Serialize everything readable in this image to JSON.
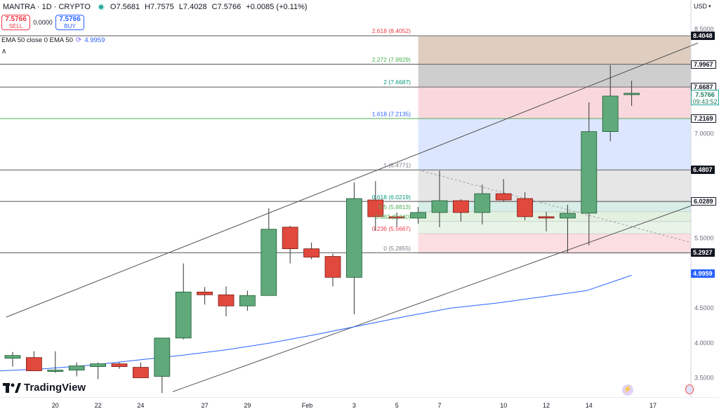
{
  "header": {
    "symbol": "MANTRA · 1D · CRYPTO",
    "open": "O7.5681",
    "high": "H7.7575",
    "low": "L7.4028",
    "close": "C7.5766",
    "change": "+0.0085 (+0.11%)",
    "status_color": "#26a69a"
  },
  "trade": {
    "sell_price": "7.5766",
    "sell_label": "SELL",
    "spread": "0.0000",
    "buy_price": "7.5766",
    "buy_label": "BUY"
  },
  "indicator": {
    "label": "EMA 50 close 0 EMA 50",
    "value": "4.9959",
    "icon": "indicator-settings-icon"
  },
  "axis": {
    "currency": "USD",
    "price_ticks": [
      "8.5000",
      "7.0000",
      "6.5000",
      "5.5000",
      "4.5000",
      "4.0000",
      "3.5000"
    ],
    "date_ticks": [
      "20",
      "22",
      "24",
      "27",
      "29",
      "Feb",
      "3",
      "5",
      "7",
      "10",
      "12",
      "14",
      "17"
    ],
    "badges": [
      {
        "text": "8.4048",
        "style": "dark"
      },
      {
        "text": "7.9967",
        "style": "light"
      },
      {
        "text": "7.6687",
        "style": "light"
      },
      {
        "text": "7.2169",
        "style": "light"
      },
      {
        "text": "6.4807",
        "style": "dark"
      },
      {
        "text": "6.0289",
        "style": "light"
      },
      {
        "text": "5.2927",
        "style": "dark"
      },
      {
        "text": "4.9959",
        "style": "blue"
      }
    ],
    "current_price": "7.5766",
    "countdown": "09:43:52"
  },
  "fib": {
    "labels": [
      {
        "text": "2.618 (8.4052)",
        "color": "#f23645"
      },
      {
        "text": "2.272 (7.9929)",
        "color": "#4caf50"
      },
      {
        "text": "2 (7.6687)",
        "color": "#089981"
      },
      {
        "text": "1.618 (7.2135)",
        "color": "#2962ff"
      },
      {
        "text": "1 (6.4771)",
        "color": "#787b86"
      },
      {
        "text": "0.618 (6.0219)",
        "color": "#089981"
      },
      {
        "text": "0.5 (5.8813)",
        "color": "#4caf50"
      },
      {
        "text": "0.382 (5.740)",
        "color": "#4caf50"
      },
      {
        "text": "0.236 (5.5667)",
        "color": "#f23645"
      },
      {
        "text": "0 (5.2855)",
        "color": "#787b86"
      }
    ]
  },
  "chart_data": {
    "type": "candlestick",
    "title": "MANTRA · 1D · CRYPTO",
    "ylim": [
      3.3,
      8.72
    ],
    "y_ticks": [
      8.5,
      7.0,
      6.5,
      5.5,
      4.5,
      4.0,
      3.5
    ],
    "x_labels": [
      "20",
      "22",
      "24",
      "27",
      "29",
      "Feb",
      "3",
      "5",
      "7",
      "10",
      "12",
      "14",
      "17"
    ],
    "candles": [
      {
        "o": 3.78,
        "h": 3.87,
        "l": 3.66,
        "c": 3.82
      },
      {
        "o": 3.79,
        "h": 3.88,
        "l": 3.6,
        "c": 3.6
      },
      {
        "o": 3.6,
        "h": 3.88,
        "l": 3.57,
        "c": 3.61
      },
      {
        "o": 3.61,
        "h": 3.72,
        "l": 3.52,
        "c": 3.67
      },
      {
        "o": 3.66,
        "h": 3.72,
        "l": 3.48,
        "c": 3.7
      },
      {
        "o": 3.7,
        "h": 3.72,
        "l": 3.63,
        "c": 3.66
      },
      {
        "o": 3.65,
        "h": 3.72,
        "l": 3.5,
        "c": 3.5
      },
      {
        "o": 3.52,
        "h": 4.07,
        "l": 3.28,
        "c": 4.07
      },
      {
        "o": 4.07,
        "h": 5.14,
        "l": 4.05,
        "c": 4.73
      },
      {
        "o": 4.73,
        "h": 4.8,
        "l": 4.55,
        "c": 4.69
      },
      {
        "o": 4.69,
        "h": 4.81,
        "l": 4.38,
        "c": 4.53
      },
      {
        "o": 4.53,
        "h": 4.75,
        "l": 4.46,
        "c": 4.68
      },
      {
        "o": 4.68,
        "h": 5.93,
        "l": 4.68,
        "c": 5.63
      },
      {
        "o": 5.66,
        "h": 5.68,
        "l": 5.14,
        "c": 5.35
      },
      {
        "o": 5.35,
        "h": 5.44,
        "l": 5.2,
        "c": 5.23
      },
      {
        "o": 5.24,
        "h": 5.28,
        "l": 4.81,
        "c": 4.94
      },
      {
        "o": 4.94,
        "h": 6.3,
        "l": 4.41,
        "c": 6.07
      },
      {
        "o": 6.05,
        "h": 6.32,
        "l": 5.61,
        "c": 5.81
      },
      {
        "o": 5.81,
        "h": 5.87,
        "l": 5.67,
        "c": 5.79
      },
      {
        "o": 5.79,
        "h": 5.95,
        "l": 5.71,
        "c": 5.87
      },
      {
        "o": 5.87,
        "h": 6.47,
        "l": 5.66,
        "c": 6.04
      },
      {
        "o": 6.04,
        "h": 6.06,
        "l": 5.74,
        "c": 5.87
      },
      {
        "o": 5.87,
        "h": 6.27,
        "l": 5.7,
        "c": 6.14
      },
      {
        "o": 6.14,
        "h": 6.35,
        "l": 6.03,
        "c": 6.05
      },
      {
        "o": 6.07,
        "h": 6.16,
        "l": 5.76,
        "c": 5.81
      },
      {
        "o": 5.81,
        "h": 5.88,
        "l": 5.6,
        "c": 5.79
      },
      {
        "o": 5.79,
        "h": 5.98,
        "l": 5.29,
        "c": 5.86
      },
      {
        "o": 5.86,
        "h": 7.45,
        "l": 5.4,
        "c": 7.03
      },
      {
        "o": 7.03,
        "h": 7.98,
        "l": 6.89,
        "c": 7.54
      },
      {
        "o": 7.57,
        "h": 7.76,
        "l": 7.4,
        "c": 7.58
      }
    ],
    "ema50": [
      3.6,
      3.63,
      3.68,
      3.75,
      3.82,
      3.9,
      4.0,
      4.12,
      4.25,
      4.38,
      4.5,
      4.57,
      4.66,
      4.75,
      4.97
    ],
    "fib_levels": [
      8.4052,
      7.9929,
      7.6687,
      7.2135,
      6.4771,
      6.0219,
      5.8813,
      5.74,
      5.5667,
      5.2855
    ],
    "horizontal_lines": [
      8.4048,
      7.9967,
      7.6687,
      7.2169,
      6.4807,
      6.0289,
      5.2927
    ],
    "channel": {
      "upper": [
        [
          -0.3,
          4.37
        ],
        [
          32.1,
          8.3
        ]
      ],
      "lower": [
        [
          7.5,
          3.3
        ],
        [
          32.1,
          6.0
        ]
      ]
    }
  }
}
